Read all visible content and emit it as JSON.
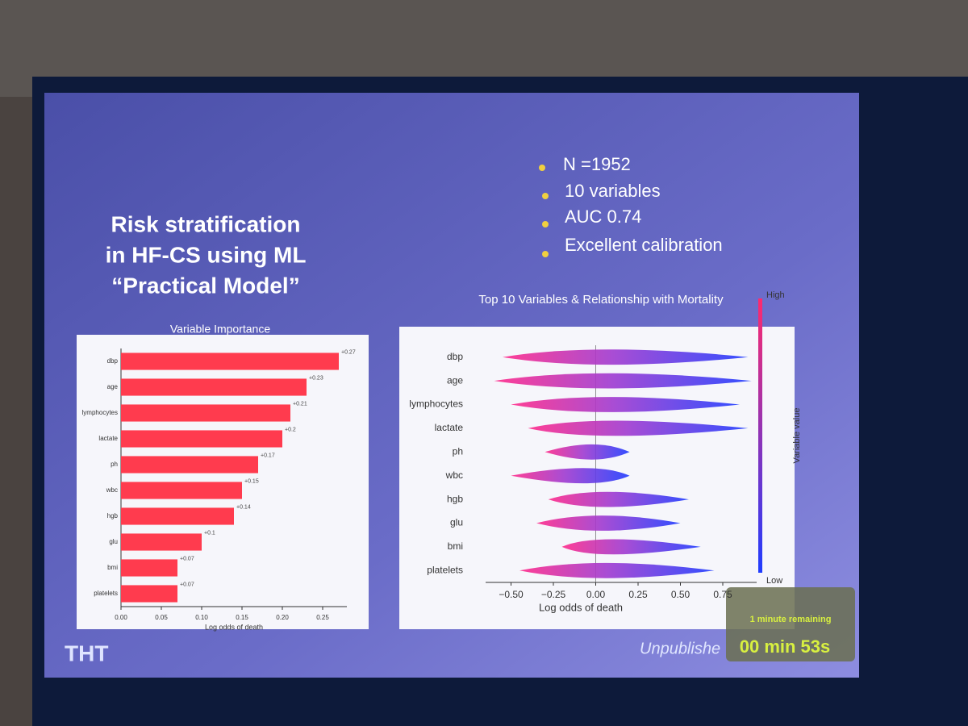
{
  "slide": {
    "title_lines": [
      "Risk stratification",
      "in HF-CS using ML",
      "“Practical Model”"
    ],
    "bullets": [
      "N =1952",
      "10 variables",
      "AUC 0.74",
      "Excellent calibration"
    ],
    "logo": "THT",
    "footer": "Unpublishe",
    "timer_note": "1 minute remaining",
    "timer": "00 min 53s"
  },
  "chart_data": [
    {
      "type": "hbar",
      "title": "Variable Importance",
      "categories": [
        "dbp",
        "age",
        "lymphocytes",
        "lactate",
        "ph",
        "wbc",
        "hgb",
        "glu",
        "bmi",
        "platelets"
      ],
      "values": [
        0.27,
        0.23,
        0.21,
        0.2,
        0.17,
        0.15,
        0.14,
        0.1,
        0.07,
        0.07
      ],
      "value_labels": [
        "+0.27",
        "+0.23",
        "+0.21",
        "+0.2",
        "+0.17",
        "+0.15",
        "+0.14",
        "+0.1",
        "+0.07",
        "+0.07"
      ],
      "color": "#ff3b4e",
      "xlabel": "Log odds of death",
      "xlim": [
        0,
        0.28
      ],
      "xticks": [
        {
          "value": 0,
          "label": "0.00"
        },
        {
          "value": 0.05,
          "label": "0.05"
        },
        {
          "value": 0.1,
          "label": "0.10"
        },
        {
          "value": 0.15,
          "label": "0.15"
        },
        {
          "value": 0.2,
          "label": "0.20"
        },
        {
          "value": 0.25,
          "label": "0.25"
        }
      ]
    },
    {
      "type": "beeswarm",
      "title": "Top 10 Variables & Relationship with Mortality",
      "categories": [
        "dbp",
        "age",
        "lymphocytes",
        "lactate",
        "ph",
        "wbc",
        "hgb",
        "glu",
        "bmi",
        "platelets"
      ],
      "values": [
        [
          -0.55,
          0.9
        ],
        [
          -0.6,
          0.92
        ],
        [
          -0.5,
          0.85
        ],
        [
          -0.4,
          0.9
        ],
        [
          -0.3,
          0.2
        ],
        [
          -0.5,
          0.2
        ],
        [
          -0.28,
          0.55
        ],
        [
          -0.35,
          0.5
        ],
        [
          -0.2,
          0.62
        ],
        [
          -0.45,
          0.7
        ]
      ],
      "xlabel": "Log odds of death",
      "xlim": [
        -0.65,
        0.95
      ],
      "xticks": [
        {
          "value": -0.5,
          "label": "−0.50"
        },
        {
          "value": -0.25,
          "label": "−0.25"
        },
        {
          "value": 0,
          "label": "0.00"
        },
        {
          "value": 0.25,
          "label": "0.25"
        },
        {
          "value": 0.5,
          "label": "0.50"
        },
        {
          "value": 0.75,
          "label": "0.75"
        }
      ],
      "colorbar": {
        "high": "High",
        "low": "Low",
        "label": "Variable value",
        "high_color": "#ff2a6d",
        "low_color": "#1f3cff"
      }
    }
  ]
}
